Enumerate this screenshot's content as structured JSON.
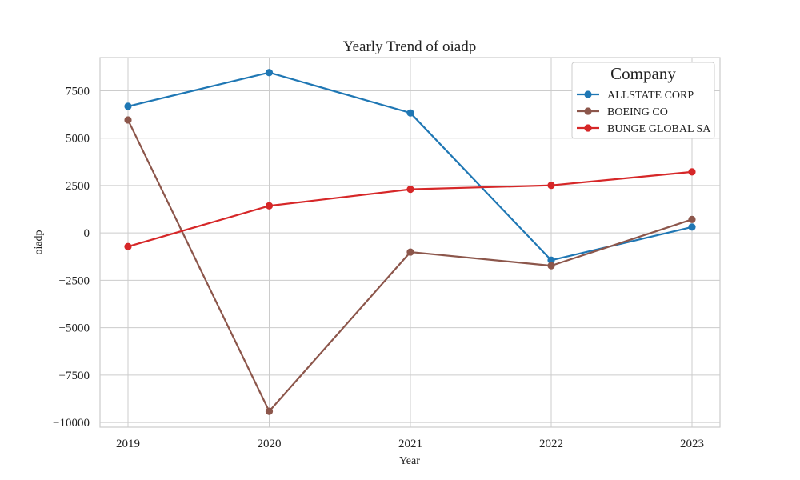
{
  "chart_data": {
    "type": "line",
    "title": "Yearly Trend of oiadp",
    "xlabel": "Year",
    "ylabel": "oiadp",
    "x": [
      "2019",
      "2020",
      "2021",
      "2022",
      "2023"
    ],
    "y_ticks": [
      7500,
      5000,
      2500,
      0,
      -2500,
      -5000,
      -7500,
      -10000
    ],
    "y_tick_labels": [
      "7500",
      "5000",
      "2500",
      "0",
      "−2500",
      "−5000",
      "−7500",
      "−10000"
    ],
    "ylim": [
      -10250,
      9250
    ],
    "grid": true,
    "legend": {
      "title": "Company",
      "placement": "top-right"
    },
    "series": [
      {
        "name": "ALLSTATE CORP",
        "color": "#1f77b4",
        "values": [
          6680,
          8460,
          6330,
          -1440,
          310
        ]
      },
      {
        "name": "BOEING CO",
        "color": "#8c564b",
        "values": [
          5960,
          -9410,
          -1010,
          -1730,
          710
        ]
      },
      {
        "name": "BUNGE GLOBAL SA",
        "color": "#d62728",
        "values": [
          -720,
          1430,
          2300,
          2510,
          3220
        ]
      }
    ]
  }
}
